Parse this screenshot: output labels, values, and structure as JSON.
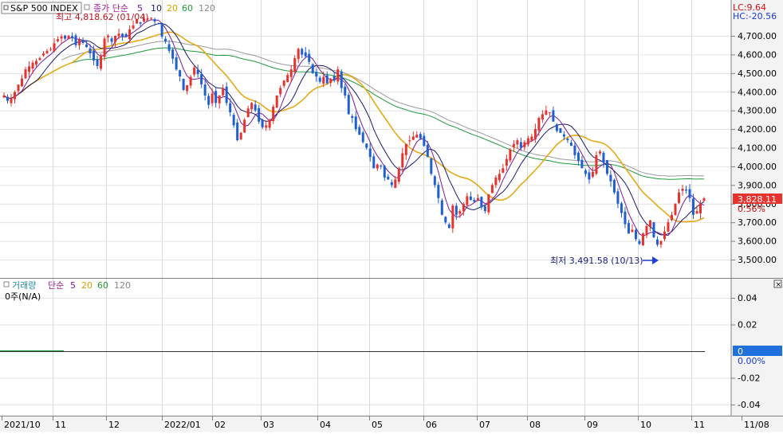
{
  "chart_data": [
    {
      "type": "candlestick",
      "title": "S&P 500 INDEX",
      "legend": {
        "prefix": "종가 단순",
        "periods": [
          "5",
          "10",
          "20",
          "60",
          "120"
        ]
      },
      "lc_label": "LC:9.64",
      "hc_label": "HC:-20.56",
      "ylim": [
        3420,
        4880
      ],
      "yticks": [
        "4,700.00",
        "4,600.00",
        "4,500.00",
        "4,400.00",
        "4,300.00",
        "4,200.00",
        "4,100.00",
        "4,000.00",
        "3,900.00",
        "3,800.00",
        "3,700.00",
        "3,600.00",
        "3,500.00"
      ],
      "ytick_values": [
        4700,
        4600,
        4500,
        4400,
        4300,
        4200,
        4100,
        4000,
        3900,
        3800,
        3700,
        3600,
        3500
      ],
      "last_price_label": "3,828.11",
      "last_price": 3828.11,
      "last_change_label": "0.56%",
      "high_annotation": "최고 4,818.62 (01/04)",
      "high_value": 4818.62,
      "low_annotation": "최저 3,491.58 (10/13)",
      "low_value": 3491.58,
      "x_labels": [
        "2021/10",
        "11",
        "12",
        "2022/01",
        "02",
        "03",
        "04",
        "05",
        "06",
        "07",
        "08",
        "09",
        "10",
        "11",
        "11/08"
      ],
      "series_price": [
        4380,
        4352,
        4363,
        4399,
        4438,
        4471,
        4520,
        4536,
        4556,
        4566,
        4580,
        4605,
        4620,
        4630,
        4660,
        4682,
        4697,
        4685,
        4701,
        4689,
        4650,
        4680,
        4662,
        4640,
        4606,
        4567,
        4538,
        4595,
        4685,
        4701,
        4668,
        4700,
        4712,
        4697,
        4693,
        4735,
        4756,
        4786,
        4766,
        4791,
        4793,
        4797,
        4777,
        4765,
        4696,
        4670,
        4620,
        4578,
        4520,
        4482,
        4410,
        4435,
        4480,
        4530,
        4495,
        4440,
        4380,
        4330,
        4390,
        4340,
        4380,
        4420,
        4340,
        4290,
        4220,
        4140,
        4180,
        4250,
        4310,
        4340,
        4300,
        4240,
        4210,
        4220,
        4250,
        4320,
        4380,
        4420,
        4460,
        4490,
        4520,
        4580,
        4630,
        4600,
        4590,
        4560,
        4500,
        4482,
        4454,
        4480,
        4446,
        4470,
        4460,
        4520,
        4420,
        4380,
        4280,
        4260,
        4200,
        4170,
        4130,
        4100,
        4050,
        3990,
        4010,
        4000,
        3940,
        3930,
        3900,
        3930,
        3990,
        4070,
        4120,
        4140,
        4160,
        4170,
        4150,
        4110,
        4050,
        3960,
        3900,
        3830,
        3740,
        3700,
        3670,
        3790,
        3740,
        3760,
        3800,
        3840,
        3820,
        3810,
        3830,
        3780,
        3760,
        3850,
        3900,
        3940,
        3960,
        3990,
        4040,
        4090,
        4120,
        4140,
        4100,
        4130,
        4150,
        4160,
        4200,
        4260,
        4280,
        4300,
        4290,
        4240,
        4190,
        4180,
        4160,
        4140,
        4110,
        4060,
        4030,
        3990,
        3960,
        3930,
        3970,
        4060,
        4080,
        4020,
        3960,
        3920,
        3860,
        3800,
        3750,
        3690,
        3640,
        3660,
        3610,
        3585,
        3640,
        3680,
        3710,
        3620,
        3580,
        3600,
        3650,
        3700,
        3740,
        3800,
        3860,
        3880,
        3870,
        3830,
        3740,
        3760,
        3800,
        3828
      ]
    },
    {
      "type": "bar",
      "title": "거래량",
      "legend": {
        "prefix": "단순",
        "periods": [
          "5",
          "20",
          "60",
          "120"
        ]
      },
      "value_label": "0주(N/A)",
      "ylim": [
        -0.05,
        0.05
      ],
      "yticks": [
        "0.04",
        "0.02",
        "-0.02",
        "-0.04"
      ],
      "ytick_values": [
        0.04,
        0.02,
        -0.02,
        -0.04
      ],
      "zero_label": "0",
      "zero_pct_label": "0.00%"
    }
  ],
  "colors": {
    "up": "#e8322d",
    "down": "#1f5fd2",
    "ma5": "#7a1a9a",
    "ma10": "#1a1a66",
    "ma20": "#e6aa18",
    "ma60": "#1f9a3a",
    "ma120": "#9a9a9a",
    "price_box": "#e8322d",
    "zero_box": "#1f6fdc",
    "low_arrow": "#1f3fd2"
  }
}
